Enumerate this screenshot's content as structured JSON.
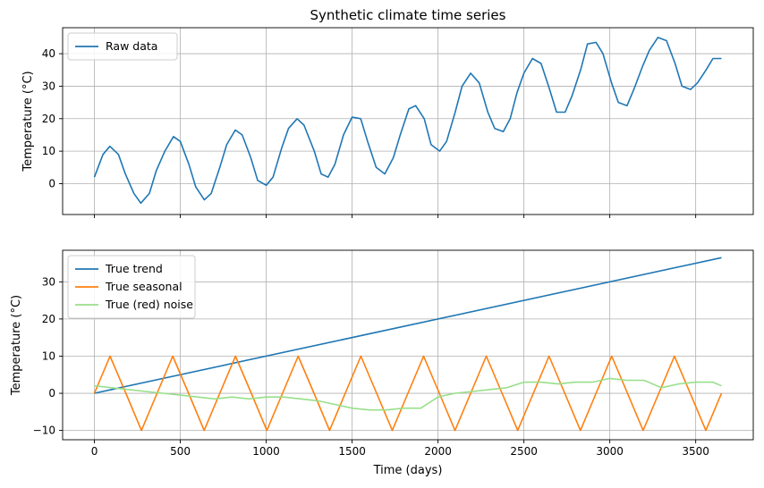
{
  "chart_data": [
    {
      "type": "line",
      "title": "Synthetic climate time series",
      "xlabel": "",
      "ylabel": "Temperature (°C)",
      "xlim": [
        -185,
        3835
      ],
      "ylim": [
        -9.5,
        48
      ],
      "xticks": [
        0,
        500,
        1000,
        1500,
        2000,
        2500,
        3000,
        3500
      ],
      "yticks": [
        0,
        10,
        20,
        30,
        40
      ],
      "grid": true,
      "legend": "top-left",
      "series": [
        {
          "name": "Raw data",
          "color": "#1f77b4",
          "x": [
            0,
            50,
            90,
            140,
            180,
            230,
            270,
            320,
            360,
            410,
            460,
            500,
            550,
            590,
            640,
            680,
            730,
            770,
            820,
            860,
            910,
            950,
            1000,
            1040,
            1090,
            1130,
            1180,
            1220,
            1280,
            1320,
            1360,
            1400,
            1450,
            1500,
            1550,
            1590,
            1640,
            1690,
            1740,
            1780,
            1830,
            1870,
            1920,
            1960,
            2010,
            2050,
            2100,
            2140,
            2190,
            2240,
            2290,
            2330,
            2380,
            2420,
            2460,
            2500,
            2550,
            2600,
            2650,
            2690,
            2740,
            2780,
            2830,
            2870,
            2920,
            2960,
            3010,
            3050,
            3100,
            3140,
            3190,
            3230,
            3280,
            3330,
            3380,
            3420,
            3470,
            3510,
            3560,
            3600,
            3650
          ],
          "y": [
            2,
            9,
            11.5,
            9,
            3,
            -3,
            -6,
            -3,
            4,
            10,
            14.5,
            13,
            6,
            -1,
            -5,
            -3,
            5,
            12,
            16.5,
            15,
            8,
            1,
            -0.5,
            2,
            11,
            17,
            20,
            18,
            10,
            3,
            2,
            6,
            15,
            20.5,
            20,
            13,
            5,
            3,
            8,
            15,
            23,
            24,
            20,
            12,
            10,
            13,
            22,
            30,
            34,
            31,
            22,
            17,
            16,
            20,
            28,
            34,
            38.5,
            37,
            29,
            22,
            22,
            27,
            35,
            43,
            43.5,
            40,
            31,
            25,
            24,
            29,
            36,
            41,
            45,
            44,
            37,
            30,
            29,
            31,
            35,
            38.5,
            38.5
          ]
        }
      ]
    },
    {
      "type": "line",
      "title": "",
      "xlabel": "Time (days)",
      "ylabel": "Temperature (°C)",
      "xlim": [
        -185,
        3835
      ],
      "ylim": [
        -12.5,
        38.5
      ],
      "xticks": [
        0,
        500,
        1000,
        1500,
        2000,
        2500,
        3000,
        3500
      ],
      "xticklabels": [
        "0",
        "500",
        "1000",
        "1500",
        "2000",
        "2500",
        "3000",
        "3500"
      ],
      "yticks": [
        -10,
        0,
        10,
        20,
        30
      ],
      "grid": true,
      "legend": "top-left",
      "series": [
        {
          "name": "True trend",
          "color": "#1f77b4",
          "x": [
            0,
            3650
          ],
          "y": [
            0,
            36.5
          ]
        },
        {
          "name": "True seasonal",
          "color": "#ff7f0e",
          "x": [
            0,
            91,
            183,
            274,
            365,
            456,
            548,
            639,
            730,
            821,
            913,
            1004,
            1095,
            1186,
            1278,
            1369,
            1460,
            1551,
            1643,
            1734,
            1825,
            1916,
            2008,
            2099,
            2190,
            2281,
            2373,
            2464,
            2555,
            2646,
            2738,
            2829,
            2920,
            3011,
            3103,
            3194,
            3285,
            3376,
            3468,
            3559,
            3650
          ],
          "y": [
            0,
            10,
            0,
            -10,
            0,
            10,
            0,
            -10,
            0,
            10,
            0,
            -10,
            0,
            10,
            0,
            -10,
            0,
            10,
            0,
            -10,
            0,
            10,
            0,
            -10,
            0,
            10,
            0,
            -10,
            0,
            10,
            0,
            -10,
            0,
            10,
            0,
            -10,
            0,
            10,
            0,
            -10,
            0
          ]
        },
        {
          "name": "True (red) noise",
          "color": "#98df8a",
          "x": [
            0,
            100,
            200,
            300,
            400,
            500,
            600,
            700,
            800,
            900,
            1000,
            1100,
            1200,
            1300,
            1400,
            1500,
            1600,
            1700,
            1800,
            1900,
            2000,
            2100,
            2200,
            2300,
            2400,
            2500,
            2600,
            2700,
            2800,
            2900,
            3000,
            3100,
            3200,
            3300,
            3400,
            3500,
            3600,
            3650
          ],
          "y": [
            2,
            1.5,
            1,
            0.5,
            0,
            -0.5,
            -1,
            -1.5,
            -1,
            -1.5,
            -1,
            -1,
            -1.5,
            -2,
            -3,
            -4,
            -4.5,
            -4.5,
            -4,
            -4,
            -1,
            0,
            0.5,
            1,
            1.5,
            3,
            3,
            2.5,
            3,
            3,
            4,
            3.5,
            3.5,
            1.5,
            2.5,
            3,
            3,
            2
          ]
        }
      ]
    }
  ]
}
